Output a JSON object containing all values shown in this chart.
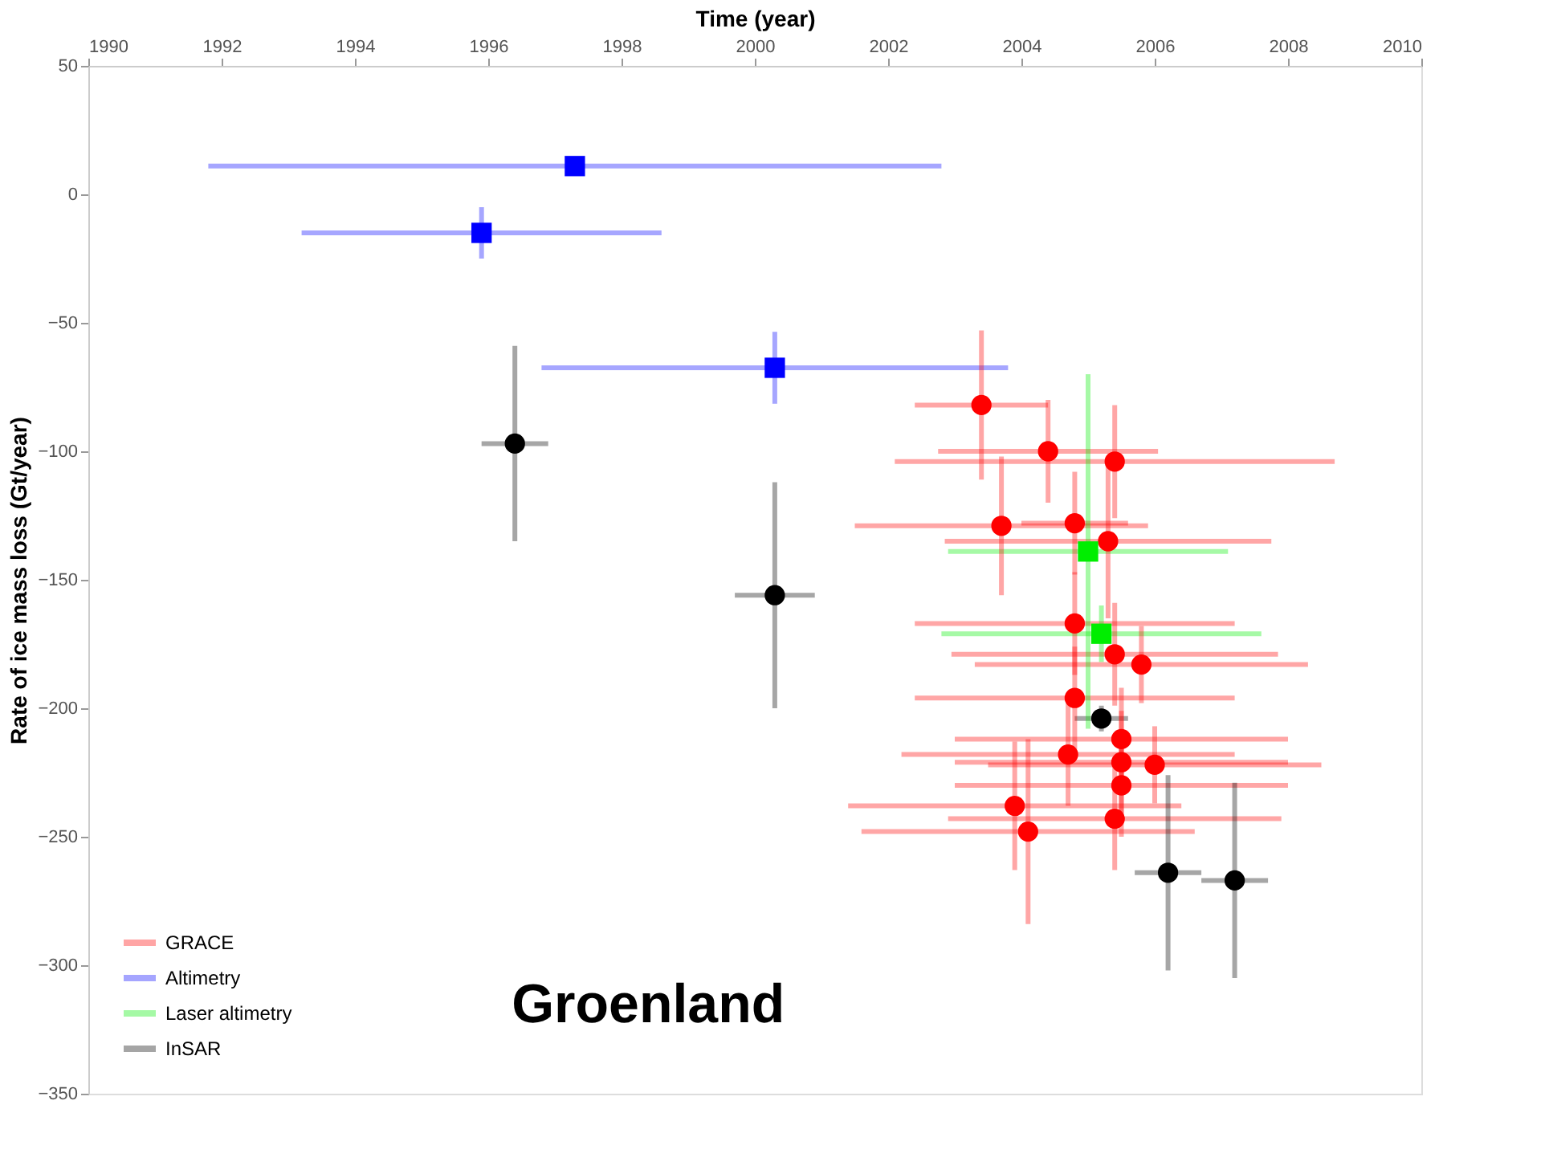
{
  "chart_data": {
    "type": "scatter",
    "xlabel": "Time (year)",
    "ylabel": "Rate of ice mass loss (Gt/year)",
    "xlim": [
      1990,
      2010
    ],
    "xticks": [
      1990,
      1992,
      1994,
      1996,
      1998,
      2000,
      2002,
      2004,
      2006,
      2008,
      2010
    ],
    "ylim": [
      -350,
      50
    ],
    "yticks": [
      50,
      0,
      -50,
      -100,
      -150,
      -200,
      -250,
      -300,
      -350
    ],
    "grid": false,
    "legend": "bottom left",
    "annotations": [
      "Groenland"
    ],
    "series": [
      {
        "name": "GRACE",
        "color": "#ff0000",
        "marker": "circle",
        "x": [
          2003.4,
          2004.4,
          2005.4,
          2003.7,
          2004.8,
          2005.3,
          2004.8,
          2005.4,
          2005.8,
          2004.8,
          2005.5,
          2004.7,
          2005.5,
          2006.0,
          2005.5,
          2003.9,
          2004.1,
          2005.4
        ],
        "values": [
          -82,
          -100,
          -104,
          -129,
          -128,
          -135,
          -167,
          -179,
          -183,
          -196,
          -212,
          -218,
          -221,
          -222,
          -230,
          -238,
          -248,
          -243
        ],
        "errors": [
          29,
          20,
          22,
          27,
          20,
          30,
          20,
          20,
          15,
          20,
          20,
          20,
          20,
          15,
          20,
          25,
          36,
          20
        ],
        "xerrors": [
          1.0,
          1.65,
          3.3,
          2.2,
          0.8,
          2.45,
          2.4,
          2.45,
          2.5,
          2.4,
          2.5,
          2.5,
          2.5,
          2.5,
          2.5,
          2.5,
          2.5,
          2.5
        ]
      },
      {
        "name": "Altimetry",
        "color": "#0000ff",
        "marker": "square",
        "x": [
          1997.3,
          1995.9,
          2000.3
        ],
        "values": [
          11,
          -15,
          -67.5
        ],
        "errors": [
          null,
          10,
          14
        ],
        "xerrors": [
          5.5,
          2.7,
          3.5
        ]
      },
      {
        "name": "Laser altimetry",
        "color": "#00ee00",
        "marker": "square",
        "x": [
          2005.0,
          2005.2
        ],
        "values": [
          -139,
          -171
        ],
        "errors": [
          69,
          11
        ],
        "xerrors": [
          2.1,
          2.4
        ]
      },
      {
        "name": "InSAR",
        "color": "#000000",
        "marker": "circle",
        "x": [
          1996.4,
          2000.3,
          2005.2,
          2006.2,
          2007.2
        ],
        "values": [
          -97,
          -156,
          -204,
          -264,
          -267
        ],
        "errors": [
          38,
          44,
          5,
          38,
          38
        ],
        "xerrors": [
          0.5,
          0.6,
          0.4,
          0.5,
          0.5
        ]
      }
    ]
  }
}
